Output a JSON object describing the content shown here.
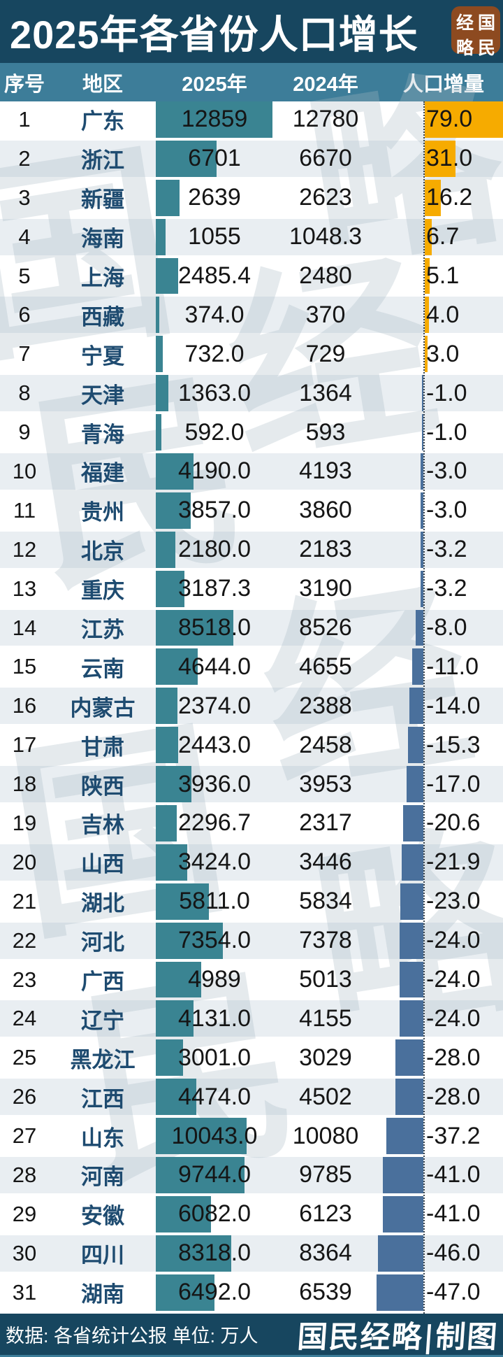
{
  "header": {
    "title": "2025年各省份人口增长"
  },
  "logo": {
    "name": "国民经略",
    "display_chars": [
      "经",
      "国",
      "略",
      "民"
    ]
  },
  "table": {
    "columns": [
      "序号",
      "地区",
      "2025年",
      "2024年",
      "人口增量"
    ]
  },
  "chart_data": {
    "type": "table",
    "title": "2025年各省份人口增长",
    "columns": [
      "序号",
      "地区",
      "2025年",
      "2024年",
      "人口增量"
    ],
    "unit": "万人",
    "source": "各省统计公报",
    "bar_encoding": {
      "2025_column": "teal bar proportional to 2025 value, max 12859",
      "increment_column": "orange bar right of anchor for positive, blue-gray bar left of anchor for negative, scale 79 = full width"
    },
    "rows": [
      {
        "no": "1",
        "region": "广东",
        "y2025": "12859",
        "y2024": "12780",
        "delta": "79.0"
      },
      {
        "no": "2",
        "region": "浙江",
        "y2025": "6701",
        "y2024": "6670",
        "delta": "31.0"
      },
      {
        "no": "3",
        "region": "新疆",
        "y2025": "2639",
        "y2024": "2623",
        "delta": "16.2"
      },
      {
        "no": "4",
        "region": "海南",
        "y2025": "1055",
        "y2024": "1048.3",
        "delta": "6.7"
      },
      {
        "no": "5",
        "region": "上海",
        "y2025": "2485.4",
        "y2024": "2480",
        "delta": "5.1"
      },
      {
        "no": "6",
        "region": "西藏",
        "y2025": "374.0",
        "y2024": "370",
        "delta": "4.0"
      },
      {
        "no": "7",
        "region": "宁夏",
        "y2025": "732.0",
        "y2024": "729",
        "delta": "3.0"
      },
      {
        "no": "8",
        "region": "天津",
        "y2025": "1363.0",
        "y2024": "1364",
        "delta": "-1.0"
      },
      {
        "no": "9",
        "region": "青海",
        "y2025": "592.0",
        "y2024": "593",
        "delta": "-1.0"
      },
      {
        "no": "10",
        "region": "福建",
        "y2025": "4190.0",
        "y2024": "4193",
        "delta": "-3.0"
      },
      {
        "no": "11",
        "region": "贵州",
        "y2025": "3857.0",
        "y2024": "3860",
        "delta": "-3.0"
      },
      {
        "no": "12",
        "region": "北京",
        "y2025": "2180.0",
        "y2024": "2183",
        "delta": "-3.2"
      },
      {
        "no": "13",
        "region": "重庆",
        "y2025": "3187.3",
        "y2024": "3190",
        "delta": "-3.2"
      },
      {
        "no": "14",
        "region": "江苏",
        "y2025": "8518.0",
        "y2024": "8526",
        "delta": "-8.0"
      },
      {
        "no": "15",
        "region": "云南",
        "y2025": "4644.0",
        "y2024": "4655",
        "delta": "-11.0"
      },
      {
        "no": "16",
        "region": "内蒙古",
        "y2025": "2374.0",
        "y2024": "2388",
        "delta": "-14.0"
      },
      {
        "no": "17",
        "region": "甘肃",
        "y2025": "2443.0",
        "y2024": "2458",
        "delta": "-15.3"
      },
      {
        "no": "18",
        "region": "陕西",
        "y2025": "3936.0",
        "y2024": "3953",
        "delta": "-17.0"
      },
      {
        "no": "19",
        "region": "吉林",
        "y2025": "2296.7",
        "y2024": "2317",
        "delta": "-20.6"
      },
      {
        "no": "20",
        "region": "山西",
        "y2025": "3424.0",
        "y2024": "3446",
        "delta": "-21.9"
      },
      {
        "no": "21",
        "region": "湖北",
        "y2025": "5811.0",
        "y2024": "5834",
        "delta": "-23.0"
      },
      {
        "no": "22",
        "region": "河北",
        "y2025": "7354.0",
        "y2024": "7378",
        "delta": "-24.0"
      },
      {
        "no": "23",
        "region": "广西",
        "y2025": "4989",
        "y2024": "5013",
        "delta": "-24.0"
      },
      {
        "no": "24",
        "region": "辽宁",
        "y2025": "4131.0",
        "y2024": "4155",
        "delta": "-24.0"
      },
      {
        "no": "25",
        "region": "黑龙江",
        "y2025": "3001.0",
        "y2024": "3029",
        "delta": "-28.0"
      },
      {
        "no": "26",
        "region": "江西",
        "y2025": "4474.0",
        "y2024": "4502",
        "delta": "-28.0"
      },
      {
        "no": "27",
        "region": "山东",
        "y2025": "10043.0",
        "y2024": "10080",
        "delta": "-37.2"
      },
      {
        "no": "28",
        "region": "河南",
        "y2025": "9744.0",
        "y2024": "9785",
        "delta": "-41.0"
      },
      {
        "no": "29",
        "region": "安徽",
        "y2025": "6082.0",
        "y2024": "6123",
        "delta": "-41.0"
      },
      {
        "no": "30",
        "region": "四川",
        "y2025": "8318.0",
        "y2024": "8364",
        "delta": "-46.0"
      },
      {
        "no": "31",
        "region": "湖南",
        "y2025": "6492.0",
        "y2024": "6539",
        "delta": "-47.0"
      }
    ]
  },
  "watermark": {
    "text": "国民经略",
    "chars": [
      "国",
      "民",
      "经",
      "略",
      "国",
      "民",
      "经",
      "略"
    ]
  },
  "footer": {
    "source_note": "数据: 各省统计公报 单位: 万人",
    "credit": "国民经略|制图"
  },
  "colors": {
    "navy": "#17465f",
    "header_teal": "#3d7d99",
    "bar_teal": "#3a8492",
    "bar_positive_orange": "#f6ab00",
    "bar_negative_blue": "#4a709c",
    "row_alt": "#e9eef2",
    "province_text": "#1e4b70"
  }
}
